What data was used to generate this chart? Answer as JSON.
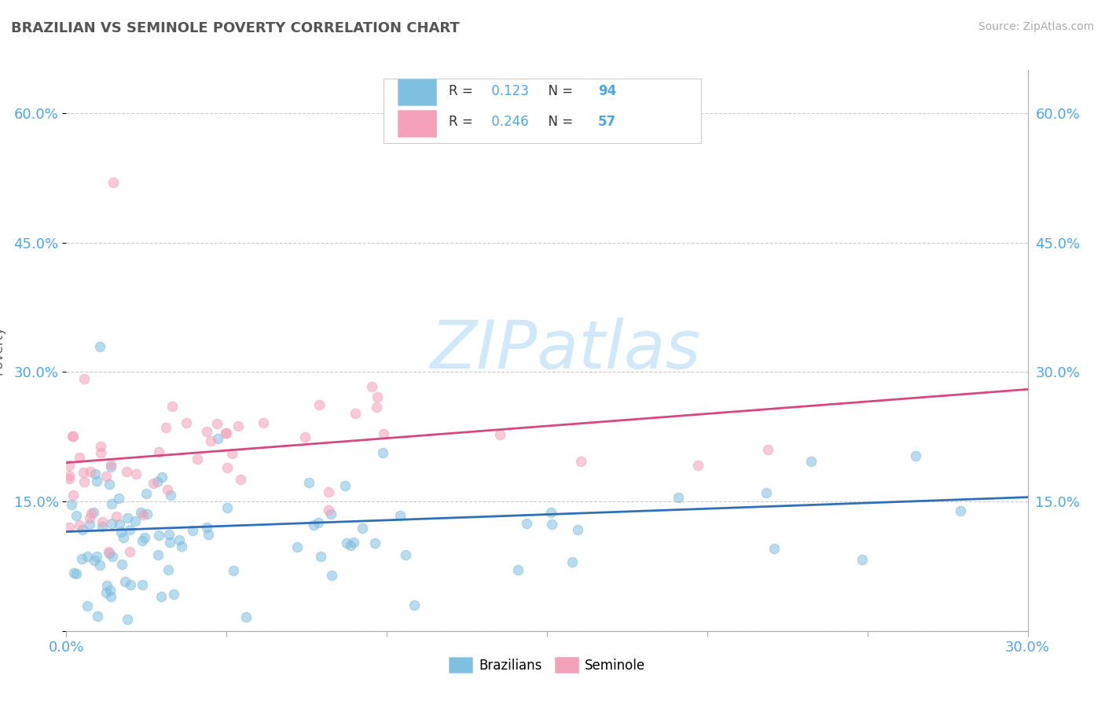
{
  "title": "BRAZILIAN VS SEMINOLE POVERTY CORRELATION CHART",
  "source_text": "Source: ZipAtlas.com",
  "ylabel": "Poverty",
  "xlim": [
    0.0,
    0.3
  ],
  "ylim": [
    0.0,
    0.65
  ],
  "xticks": [
    0.0,
    0.05,
    0.1,
    0.15,
    0.2,
    0.25,
    0.3
  ],
  "xticklabels": [
    "0.0%",
    "",
    "",
    "",
    "",
    "",
    "30.0%"
  ],
  "yticks": [
    0.0,
    0.15,
    0.3,
    0.45,
    0.6
  ],
  "yticklabels": [
    "",
    "15.0%",
    "30.0%",
    "45.0%",
    "60.0%"
  ],
  "grid_color": "#cccccc",
  "background_color": "#ffffff",
  "blue_color": "#7fbfdf",
  "pink_color": "#f4a0b8",
  "blue_line_color": "#3070b8",
  "pink_line_color": "#d84880",
  "title_color": "#555555",
  "axis_label_color": "#4da6e8",
  "watermark_color": "#d0e8f8",
  "watermark_text": "ZIPatlas",
  "legend_R_blue": "0.123",
  "legend_N_blue": "94",
  "legend_R_pink": "0.246",
  "legend_N_pink": "57",
  "blue_trend_start": 0.115,
  "blue_trend_end": 0.155,
  "pink_trend_start": 0.195,
  "pink_trend_end": 0.28
}
